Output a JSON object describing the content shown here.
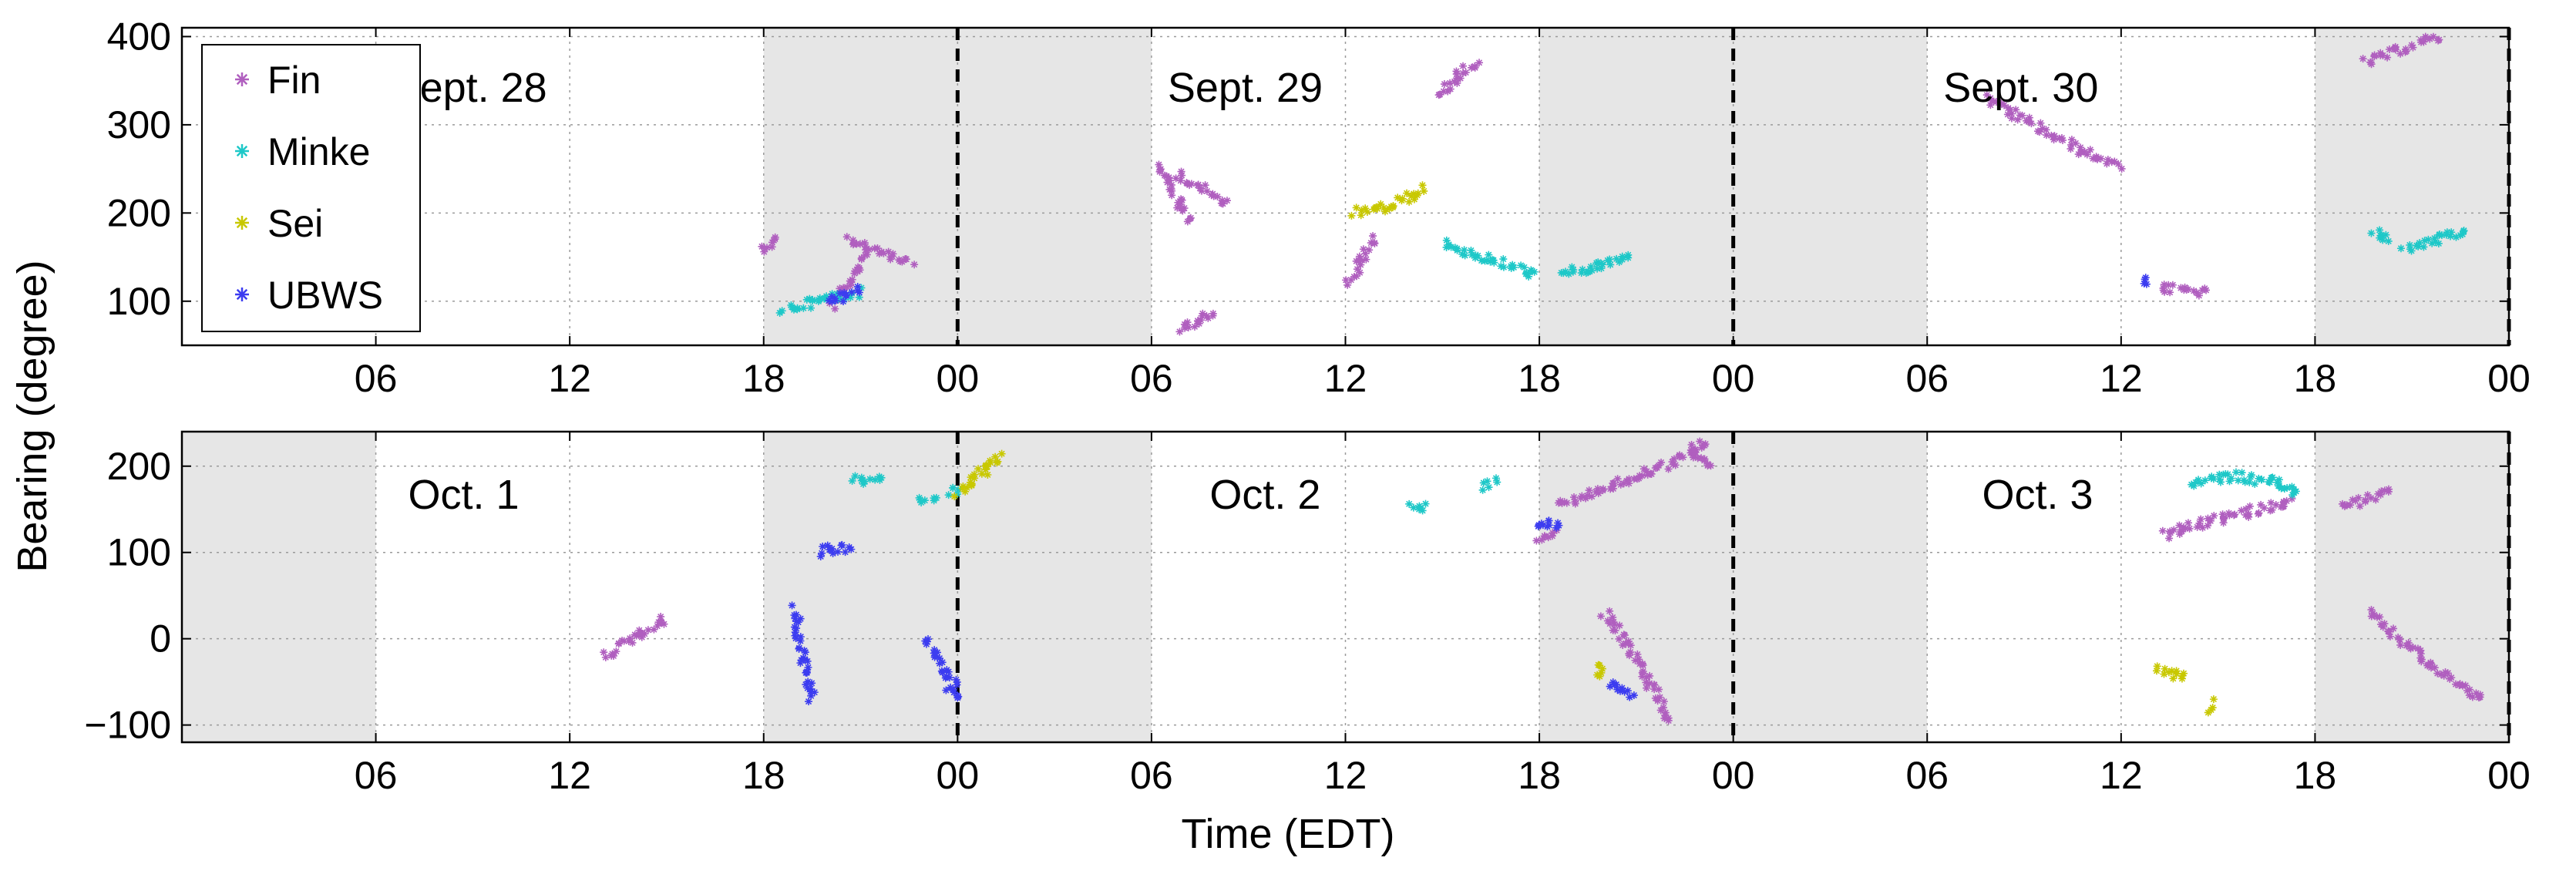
{
  "colors": {
    "Fin": "#b05fbf",
    "Minke": "#1ec8c8",
    "Sei": "#c8c800",
    "UBWS": "#3c3cf0",
    "night_shading": "#e6e6e6",
    "midnight_line": "#000000",
    "grid": "#9a9a9a"
  },
  "legend": {
    "placement": "top-left of upper panel",
    "entries": [
      "Fin",
      "Minke",
      "Sei",
      "UBWS"
    ]
  },
  "axes": {
    "xlabel": "Time (EDT)",
    "ylabel": "Bearing (degree)",
    "x_tick_labels": [
      "06",
      "12",
      "18",
      "00",
      "06",
      "12",
      "18",
      "00",
      "06",
      "12",
      "18",
      "00"
    ]
  },
  "chart_data": [
    {
      "type": "scatter",
      "panel": "top",
      "title": "",
      "xlabel": "",
      "ylabel": "Bearing (degree)",
      "xlim_hours": [
        0,
        72
      ],
      "ylim": [
        50,
        410
      ],
      "yticks": [
        100,
        200,
        300,
        400
      ],
      "xticks_hours": [
        6,
        12,
        18,
        24,
        30,
        36,
        42,
        48,
        54,
        60,
        66,
        72
      ],
      "grid": true,
      "day_labels": [
        "Sept. 28",
        "Sept. 29",
        "Sept. 30"
      ],
      "day_label_hours": [
        6.5,
        30.5,
        54.5
      ],
      "midnight_lines_hours": [
        24,
        48,
        72
      ],
      "night_intervals_hours": [
        [
          18,
          30
        ],
        [
          42,
          54
        ],
        [
          66,
          72
        ]
      ],
      "series": [
        {
          "name": "Fin",
          "segments": [
            [
              [
                17.9,
                160
              ],
              [
                18.2,
                165
              ],
              [
                18.4,
                172
              ]
            ],
            [
              [
                20.1,
                95
              ],
              [
                20.6,
                120
              ],
              [
                21.2,
                150
              ]
            ],
            [
              [
                20.6,
                170
              ],
              [
                22.6,
                145
              ]
            ],
            [
              [
                30.2,
                255
              ],
              [
                30.9,
                210
              ],
              [
                31.2,
                190
              ]
            ],
            [
              [
                30.8,
                245
              ],
              [
                32.3,
                210
              ]
            ],
            [
              [
                30.9,
                70
              ],
              [
                31.5,
                80
              ],
              [
                31.9,
                90
              ]
            ],
            [
              [
                36.1,
                120
              ],
              [
                36.9,
                170
              ]
            ],
            [
              [
                38.9,
                335
              ],
              [
                39.5,
                355
              ],
              [
                40.0,
                372
              ]
            ],
            [
              [
                55.8,
                330
              ],
              [
                58.8,
                270
              ],
              [
                59.9,
                255
              ]
            ],
            [
              [
                61.2,
                115
              ],
              [
                62.6,
                110
              ]
            ],
            [
              [
                67.5,
                370
              ],
              [
                69.8,
                400
              ]
            ]
          ]
        },
        {
          "name": "Minke",
          "segments": [
            [
              [
                18.6,
                90
              ],
              [
                19.6,
                100
              ],
              [
                20.9,
                110
              ]
            ],
            [
              [
                39.0,
                165
              ],
              [
                40.6,
                145
              ],
              [
                41.9,
                130
              ]
            ],
            [
              [
                42.6,
                130
              ],
              [
                43.9,
                140
              ],
              [
                44.8,
                150
              ]
            ],
            [
              [
                67.8,
                178
              ],
              [
                68.4,
                172
              ]
            ],
            [
              [
                68.8,
                158
              ],
              [
                69.6,
                168
              ],
              [
                70.7,
                178
              ]
            ]
          ]
        },
        {
          "name": "Sei",
          "segments": [
            [
              [
                36.3,
                200
              ],
              [
                37.5,
                208
              ],
              [
                38.4,
                228
              ]
            ]
          ]
        },
        {
          "name": "UBWS",
          "segments": [
            [
              [
                20.0,
                100
              ],
              [
                20.5,
                105
              ],
              [
                21.0,
                112
              ]
            ],
            [
              [
                60.8,
                125
              ],
              [
                60.9,
                122
              ]
            ]
          ]
        }
      ]
    },
    {
      "type": "scatter",
      "panel": "bottom",
      "title": "",
      "xlabel": "Time (EDT)",
      "ylabel": "Bearing (degree)",
      "xlim_hours": [
        0,
        72
      ],
      "ylim": [
        -120,
        240
      ],
      "yticks": [
        -100,
        0,
        100,
        200
      ],
      "xticks_hours": [
        6,
        12,
        18,
        24,
        30,
        36,
        42,
        48,
        54,
        60,
        66,
        72
      ],
      "grid": true,
      "day_labels": [
        "Oct. 1",
        "Oct. 2",
        "Oct. 3"
      ],
      "day_label_hours": [
        7.0,
        31.8,
        55.7
      ],
      "midnight_lines_hours": [
        24,
        48,
        72
      ],
      "night_intervals_hours": [
        [
          0,
          6
        ],
        [
          18,
          30
        ],
        [
          42,
          54
        ],
        [
          66,
          72
        ]
      ],
      "series": [
        {
          "name": "Fin",
          "segments": [
            [
              [
                13.0,
                -20
              ],
              [
                14.1,
                5
              ],
              [
                15.0,
                22
              ]
            ],
            [
              [
                42.0,
                115
              ],
              [
                42.5,
                125
              ]
            ],
            [
              [
                42.6,
                155
              ],
              [
                44.5,
                180
              ],
              [
                46.2,
                205
              ],
              [
                47.2,
                228
              ]
            ],
            [
              [
                46.6,
                220
              ],
              [
                47.3,
                200
              ]
            ],
            [
              [
                44.0,
                30
              ],
              [
                44.8,
                -10
              ],
              [
                45.4,
                -50
              ],
              [
                46.0,
                -95
              ]
            ],
            [
              [
                61.3,
                120
              ],
              [
                63.2,
                140
              ],
              [
                65.3,
                160
              ]
            ],
            [
              [
                66.8,
                152
              ],
              [
                68.3,
                170
              ]
            ],
            [
              [
                67.6,
                30
              ],
              [
                69.9,
                -40
              ],
              [
                71.2,
                -70
              ]
            ]
          ]
        },
        {
          "name": "Minke",
          "segments": [
            [
              [
                20.8,
                185
              ],
              [
                21.6,
                182
              ]
            ],
            [
              [
                22.8,
                160
              ],
              [
                23.3,
                162
              ]
            ],
            [
              [
                23.8,
                170
              ],
              [
                24.1,
                172
              ]
            ],
            [
              [
                38.0,
                150
              ],
              [
                38.5,
                155
              ]
            ],
            [
              [
                40.3,
                175
              ],
              [
                40.7,
                182
              ]
            ],
            [
              [
                62.2,
                180
              ],
              [
                63.5,
                188
              ],
              [
                64.8,
                182
              ],
              [
                65.5,
                168
              ]
            ]
          ]
        },
        {
          "name": "Sei",
          "segments": [
            [
              [
                24.0,
                168
              ],
              [
                24.5,
                183
              ],
              [
                25.0,
                200
              ],
              [
                25.3,
                215
              ]
            ],
            [
              [
                43.7,
                -30
              ],
              [
                43.9,
                -45
              ]
            ],
            [
              [
                61.1,
                -35
              ],
              [
                62.0,
                -45
              ]
            ],
            [
              [
                62.8,
                -75
              ],
              [
                62.8,
                -85
              ]
            ]
          ]
        },
        {
          "name": "UBWS",
          "segments": [
            [
              [
                19.7,
                100
              ],
              [
                20.1,
                105
              ],
              [
                20.7,
                102
              ]
            ],
            [
              [
                19.0,
                35
              ],
              [
                19.2,
                -20
              ],
              [
                19.5,
                -70
              ]
            ],
            [
              [
                23.0,
                0
              ],
              [
                23.6,
                -35
              ],
              [
                24.0,
                -55
              ]
            ],
            [
              [
                23.7,
                -60
              ],
              [
                24.1,
                -70
              ]
            ],
            [
              [
                41.9,
                130
              ],
              [
                42.4,
                135
              ],
              [
                42.5,
                125
              ]
            ],
            [
              [
                44.2,
                -50
              ],
              [
                44.9,
                -65
              ]
            ]
          ]
        }
      ]
    }
  ]
}
